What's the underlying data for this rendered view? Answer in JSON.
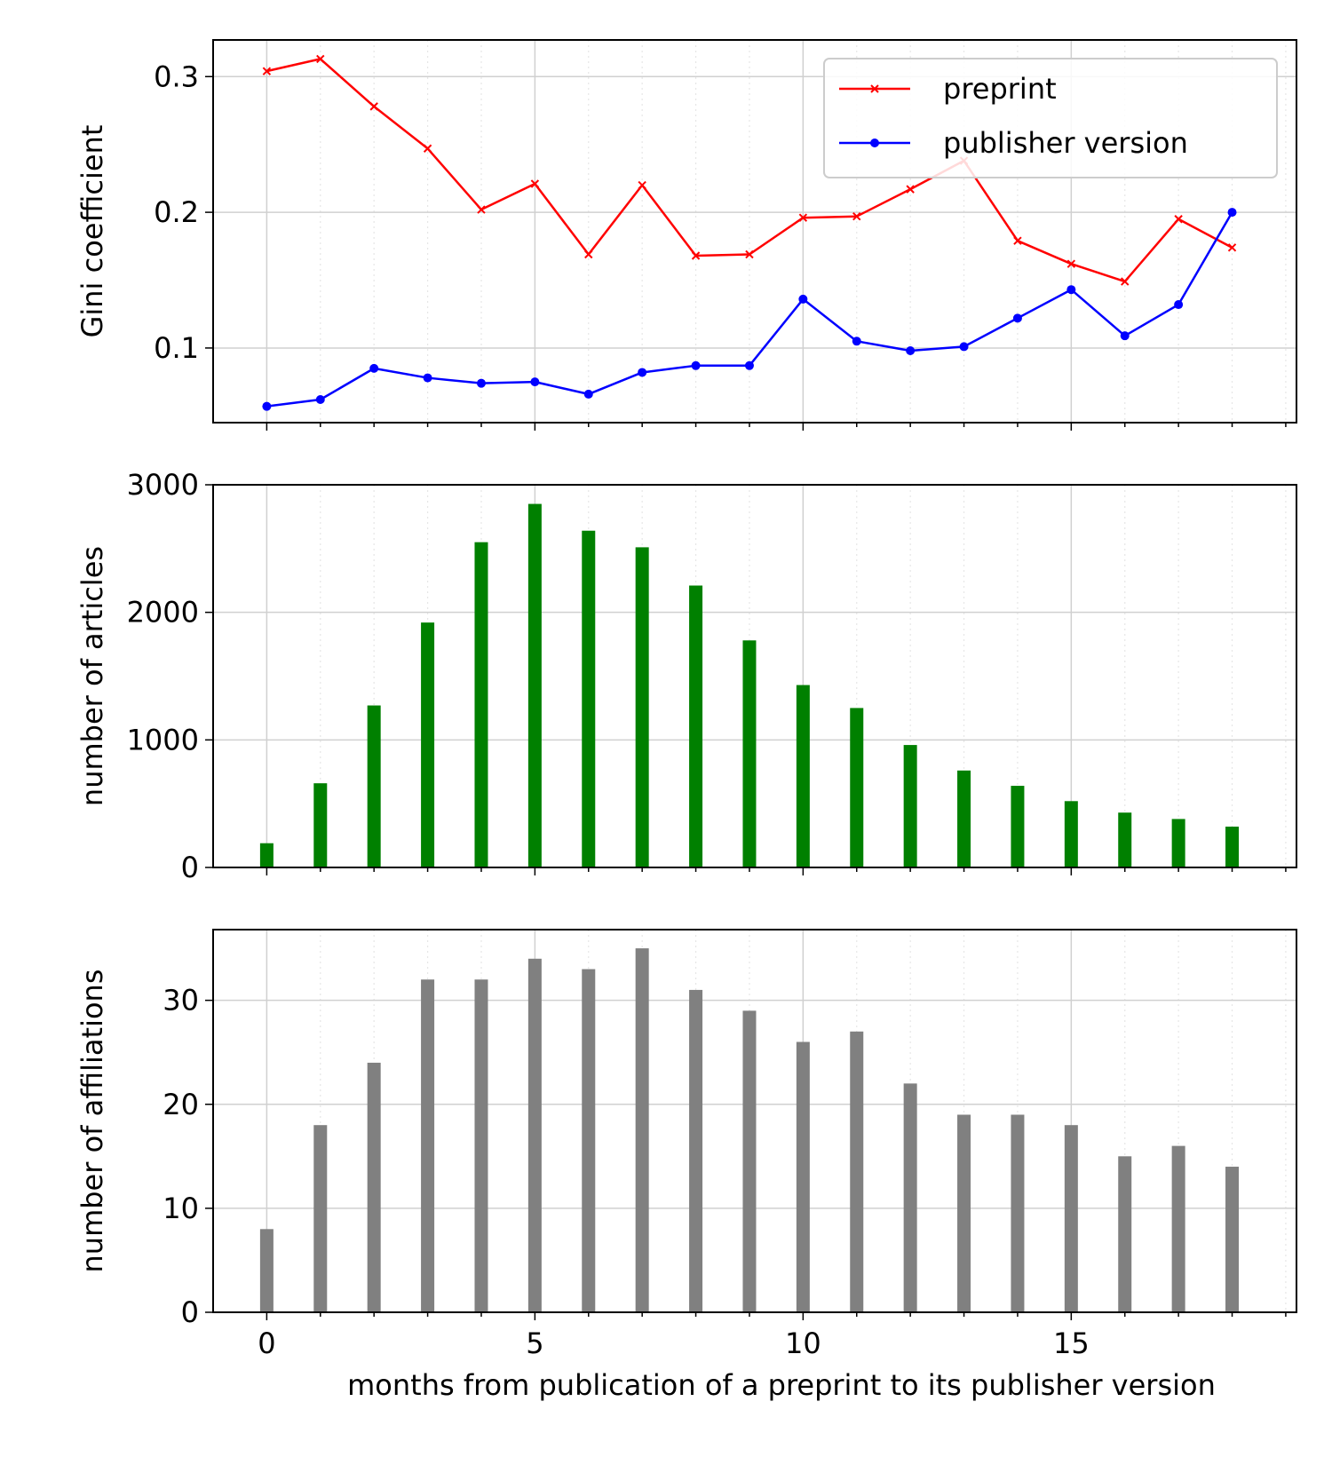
{
  "chart_data": [
    {
      "type": "line",
      "ylabel": "Gini coefficient",
      "xlim": [
        -1,
        19.2
      ],
      "ylim": [
        0.045,
        0.327
      ],
      "xticks": [
        0,
        5,
        10,
        15
      ],
      "yticks": [
        0.1,
        0.2,
        0.3
      ],
      "ytick_labels": [
        "0.1",
        "0.2",
        "0.3"
      ],
      "grid": true,
      "legend_position": "upper right",
      "x": [
        0,
        1,
        2,
        3,
        4,
        5,
        6,
        7,
        8,
        9,
        10,
        11,
        12,
        13,
        14,
        15,
        16,
        17,
        18
      ],
      "series": [
        {
          "name": "preprint",
          "color": "#ff0000",
          "marker": "x",
          "values": [
            0.304,
            0.313,
            0.278,
            0.247,
            0.202,
            0.221,
            0.169,
            0.22,
            0.168,
            0.169,
            0.196,
            0.197,
            0.217,
            0.238,
            0.179,
            0.162,
            0.149,
            0.195,
            0.174
          ]
        },
        {
          "name": "publisher version",
          "color": "#0000ff",
          "marker": "dot",
          "values": [
            0.057,
            0.062,
            0.085,
            0.078,
            0.074,
            0.075,
            0.066,
            0.082,
            0.087,
            0.087,
            0.136,
            0.105,
            0.098,
            0.101,
            0.122,
            0.143,
            0.109,
            0.132,
            0.2
          ]
        }
      ]
    },
    {
      "type": "bar",
      "ylabel": "number of articles",
      "color": "#008000",
      "xlim": [
        -1,
        19.2
      ],
      "ylim": [
        0,
        3000
      ],
      "xticks": [
        0,
        5,
        10,
        15
      ],
      "yticks": [
        0,
        1000,
        2000,
        3000
      ],
      "ytick_labels": [
        "0",
        "1000",
        "2000",
        "3000"
      ],
      "grid": true,
      "categories": [
        0,
        1,
        2,
        3,
        4,
        5,
        6,
        7,
        8,
        9,
        10,
        11,
        12,
        13,
        14,
        15,
        16,
        17,
        18
      ],
      "values": [
        190,
        660,
        1270,
        1920,
        2550,
        2850,
        2640,
        2510,
        2210,
        1780,
        1430,
        1250,
        960,
        760,
        640,
        520,
        430,
        380,
        320
      ]
    },
    {
      "type": "bar",
      "ylabel": "number of affiliations",
      "xlabel": "months from publication of a preprint to its publisher version",
      "color": "#808080",
      "xlim": [
        -1,
        19.2
      ],
      "ylim": [
        0,
        36.8
      ],
      "xticks": [
        0,
        5,
        10,
        15
      ],
      "xtick_labels": [
        "0",
        "5",
        "10",
        "15"
      ],
      "yticks": [
        0,
        10,
        20,
        30
      ],
      "ytick_labels": [
        "0",
        "10",
        "20",
        "30"
      ],
      "grid": true,
      "categories": [
        0,
        1,
        2,
        3,
        4,
        5,
        6,
        7,
        8,
        9,
        10,
        11,
        12,
        13,
        14,
        15,
        16,
        17,
        18
      ],
      "values": [
        8,
        18,
        24,
        32,
        32,
        34,
        33,
        35,
        31,
        29,
        26,
        27,
        22,
        19,
        19,
        18,
        15,
        16,
        14
      ]
    }
  ]
}
